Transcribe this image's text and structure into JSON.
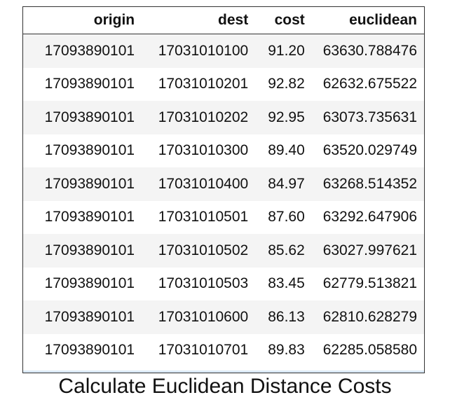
{
  "table": {
    "columns": [
      "origin",
      "dest",
      "cost",
      "euclidean"
    ],
    "rows": [
      [
        "17093890101",
        "17031010100",
        "91.20",
        "63630.788476"
      ],
      [
        "17093890101",
        "17031010201",
        "92.82",
        "62632.675522"
      ],
      [
        "17093890101",
        "17031010202",
        "92.95",
        "63073.735631"
      ],
      [
        "17093890101",
        "17031010300",
        "89.40",
        "63520.029749"
      ],
      [
        "17093890101",
        "17031010400",
        "84.97",
        "63268.514352"
      ],
      [
        "17093890101",
        "17031010501",
        "87.60",
        "63292.647906"
      ],
      [
        "17093890101",
        "17031010502",
        "85.62",
        "63027.997621"
      ],
      [
        "17093890101",
        "17031010503",
        "83.45",
        "62779.513821"
      ],
      [
        "17093890101",
        "17031010600",
        "86.13",
        "62810.628279"
      ],
      [
        "17093890101",
        "17031010701",
        "89.83",
        "62285.058580"
      ]
    ]
  },
  "caption": "Calculate Euclidean Distance Costs"
}
